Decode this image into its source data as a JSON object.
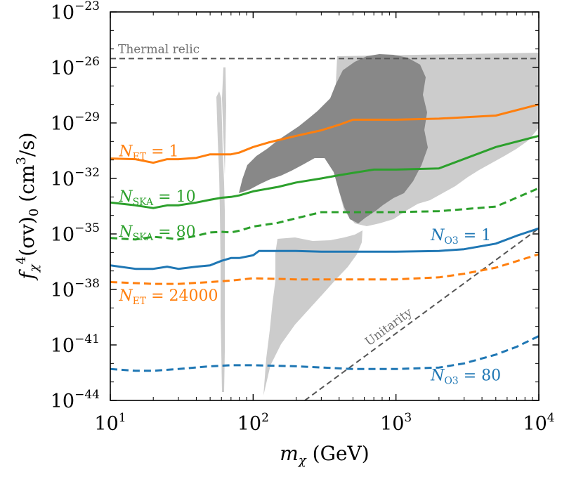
{
  "chart_data": {
    "type": "line",
    "xscale": "log",
    "yscale": "log",
    "xlim": [
      10,
      10000
    ],
    "ylim": [
      1e-44,
      1e-23
    ],
    "xlabel": {
      "main": "m",
      "sub": "χ",
      "unit": " (GeV)"
    },
    "ylabel": {
      "main": "f",
      "sub": "χ",
      "sup": "4",
      "rest": "(σv)",
      "sub2": "0",
      "unit": " (cm",
      "unit_sup": "3",
      "unit_end": "/s)"
    },
    "x_ticks": [
      {
        "value": 10,
        "base": "10",
        "exp": "1"
      },
      {
        "value": 100,
        "base": "10",
        "exp": "2"
      },
      {
        "value": 1000,
        "base": "10",
        "exp": "3"
      },
      {
        "value": 10000,
        "base": "10",
        "exp": "4"
      }
    ],
    "y_ticks": [
      {
        "value": 1e-23,
        "base": "10",
        "exp": "−23"
      },
      {
        "value": 1e-26,
        "base": "10",
        "exp": "−26"
      },
      {
        "value": 1e-29,
        "base": "10",
        "exp": "−29"
      },
      {
        "value": 1e-32,
        "base": "10",
        "exp": "−32"
      },
      {
        "value": 1e-35,
        "base": "10",
        "exp": "−35"
      },
      {
        "value": 1e-38,
        "base": "10",
        "exp": "−38"
      },
      {
        "value": 1e-41,
        "base": "10",
        "exp": "−41"
      },
      {
        "value": 1e-44,
        "base": "10",
        "exp": "−44"
      }
    ],
    "colors": {
      "et": "#ff7f0e",
      "ska": "#2ca02c",
      "o3": "#1f77b4",
      "ref": "#555555",
      "region_light": "#cccccc",
      "region_dark": "#888888"
    },
    "reference_lines": [
      {
        "id": "thermal",
        "label": "Thermal relic",
        "x": [
          10,
          10000
        ],
        "y": [
          3e-26,
          3e-26
        ]
      },
      {
        "id": "unitarity",
        "label": "Unitarity",
        "x": [
          230,
          10000
        ],
        "y": [
          1e-44,
          2e-35
        ]
      }
    ],
    "series": [
      {
        "id": "et1",
        "color_key": "et",
        "dash": false,
        "label_main": "N",
        "label_sub": "ET",
        "label_rest": " = 1",
        "x": [
          10,
          15,
          20,
          25,
          30,
          40,
          50,
          60,
          70,
          80,
          100,
          130,
          200,
          300,
          400,
          500,
          700,
          1000,
          2000,
          5000,
          10000
        ],
        "y": [
          1.2e-31,
          1.1e-31,
          7e-32,
          1.1e-31,
          1.1e-31,
          1.3e-31,
          2e-31,
          2e-31,
          2e-31,
          2.5e-31,
          5e-31,
          9e-31,
          2e-30,
          4e-30,
          8e-30,
          1.5e-29,
          1.5e-29,
          1.5e-29,
          1.7e-29,
          2.5e-29,
          1e-28
        ]
      },
      {
        "id": "ska10",
        "color_key": "ska",
        "dash": false,
        "label_main": "N",
        "label_sub": "SKA",
        "label_rest": " = 10",
        "x": [
          10,
          15,
          20,
          25,
          30,
          40,
          50,
          60,
          70,
          80,
          100,
          150,
          200,
          300,
          400,
          500,
          700,
          1000,
          2000,
          5000,
          10000
        ],
        "y": [
          5e-34,
          3.5e-34,
          2.5e-34,
          3.5e-34,
          3.5e-34,
          5e-34,
          7e-34,
          9e-34,
          1e-33,
          1.2e-33,
          2e-33,
          3.5e-33,
          6e-33,
          1e-32,
          1.5e-32,
          2e-32,
          3e-32,
          3e-32,
          3.5e-32,
          5e-31,
          2e-30
        ]
      },
      {
        "id": "ska80",
        "color_key": "ska",
        "dash": true,
        "label_main": "N",
        "label_sub": "SKA",
        "label_rest": " = 80",
        "x": [
          10,
          15,
          20,
          25,
          30,
          40,
          50,
          60,
          70,
          80,
          100,
          150,
          200,
          300,
          400,
          500,
          700,
          1000,
          2000,
          5000,
          10000
        ],
        "y": [
          6e-36,
          5e-36,
          7e-36,
          6e-36,
          5e-36,
          8e-36,
          1.2e-35,
          1.3e-35,
          1.2e-35,
          1.5e-35,
          2.5e-35,
          4e-35,
          7e-35,
          1.5e-34,
          1.5e-34,
          1.5e-34,
          1.5e-34,
          1.5e-34,
          1.7e-34,
          3e-34,
          3e-33
        ]
      },
      {
        "id": "o31",
        "color_key": "o3",
        "dash": false,
        "label_main": "N",
        "label_sub": "O3",
        "label_rest": " = 1",
        "x": [
          10,
          15,
          20,
          25,
          30,
          40,
          50,
          60,
          70,
          80,
          100,
          110,
          200,
          300,
          500,
          1000,
          2000,
          3000,
          5000,
          7000,
          10000
        ],
        "y": [
          2e-37,
          1.3e-37,
          1.3e-37,
          1.7e-37,
          1.3e-37,
          1.7e-37,
          2e-37,
          3.5e-37,
          5e-37,
          5e-37,
          7e-37,
          1.2e-36,
          1.2e-36,
          1.1e-36,
          1.1e-36,
          1.1e-36,
          1.2e-36,
          1.5e-36,
          3e-36,
          8e-36,
          2e-35
        ]
      },
      {
        "id": "et24000",
        "color_key": "et",
        "dash": true,
        "label_main": "N",
        "label_sub": "ET",
        "label_rest": " = 24000",
        "x": [
          10,
          20,
          30,
          50,
          70,
          100,
          200,
          500,
          1000,
          2000,
          3000,
          5000,
          10000
        ],
        "y": [
          2.5e-38,
          2e-38,
          2e-38,
          2.5e-38,
          3e-38,
          4e-38,
          3.5e-38,
          3.5e-38,
          3.5e-38,
          4.5e-38,
          7e-38,
          1.5e-37,
          8e-37
        ]
      },
      {
        "id": "o380",
        "color_key": "o3",
        "dash": true,
        "label_main": "N",
        "label_sub": "O3",
        "label_rest": " = 80",
        "x": [
          10,
          15,
          20,
          30,
          50,
          70,
          100,
          200,
          500,
          1000,
          2000,
          3000,
          5000,
          7000,
          10000
        ],
        "y": [
          5e-43,
          4e-43,
          4e-43,
          5e-43,
          7e-43,
          8e-43,
          8e-43,
          7e-43,
          5e-43,
          5e-43,
          6e-43,
          1e-42,
          3e-42,
          8e-42,
          3e-41
        ]
      }
    ],
    "labels": [
      {
        "series": "et1",
        "x": 11.5,
        "y": 1.6e-31
      },
      {
        "series": "ska10",
        "x": 11.5,
        "y": 5.5e-34
      },
      {
        "series": "ska80",
        "x": 11.5,
        "y": 7e-36
      },
      {
        "series": "o31",
        "x": 1750,
        "y": 4.5e-36
      },
      {
        "series": "et24000",
        "x": 11.5,
        "y": 2.5e-39
      },
      {
        "series": "o380",
        "x": 1750,
        "y": 1.2e-43
      }
    ]
  }
}
